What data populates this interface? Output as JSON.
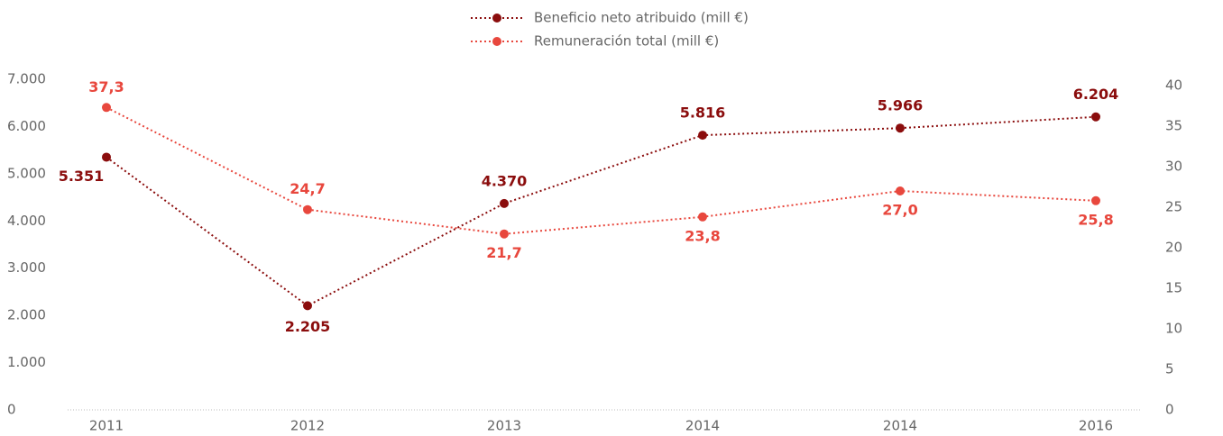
{
  "chart_data": {
    "type": "line",
    "categories": [
      "2011",
      "2012",
      "2013",
      "2014",
      "2014",
      "2016"
    ],
    "series": [
      {
        "name": "Beneficio neto atribuido (mill €)",
        "color": "#8b0d0d",
        "axis": "y",
        "values": [
          5351,
          2205,
          4370,
          5816,
          5966,
          6204
        ],
        "value_labels": [
          "5.351",
          "2.205",
          "4.370",
          "5.816",
          "5.966",
          "6.204"
        ]
      },
      {
        "name": "Remuneración total (mill €)",
        "color": "#e8473d",
        "axis": "y2",
        "values": [
          37.3,
          24.7,
          21.7,
          23.8,
          27.0,
          25.8
        ],
        "value_labels": [
          "37,3",
          "24,7",
          "21,7",
          "23,8",
          "27,0",
          "25,8"
        ]
      }
    ],
    "ylim": [
      0,
      7000
    ],
    "yticks": [
      0,
      {
        "value": 1000,
        "label": "1.000"
      },
      {
        "value": 2000,
        "label": "2.000"
      },
      {
        "value": 3000,
        "label": "3.000"
      },
      {
        "value": 4000,
        "label": "4.000"
      },
      {
        "value": 5000,
        "label": "5.000"
      },
      {
        "value": 6000,
        "label": "6.000"
      },
      {
        "value": 7000,
        "label": "7.000"
      }
    ],
    "y2lim": [
      0,
      40
    ],
    "y2ticks": [
      0,
      5,
      10,
      15,
      20,
      25,
      30,
      35,
      40
    ],
    "legend": "top"
  }
}
